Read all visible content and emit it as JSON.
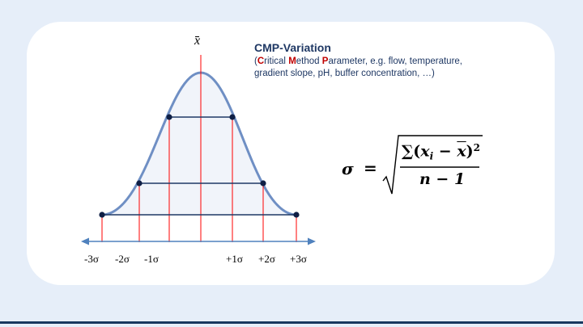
{
  "title": "CMP-Variation",
  "subtitle": {
    "open": "(",
    "c": "C",
    "ritical": "ritical ",
    "m": "M",
    "ethod": "ethod ",
    "p": "P",
    "rest": "arameter, e.g. flow, temperature, gradient slope, pH, buffer concentration, …)"
  },
  "mean_symbol": "x",
  "ticks": [
    "-3σ",
    "-2σ",
    "-1σ",
    "+1σ",
    "+2σ",
    "+3σ"
  ],
  "formula": {
    "lhs": "σ",
    "equals": "=",
    "numerator_sum": "∑(",
    "numerator_x": "x",
    "numerator_i": "i",
    "numerator_minus": " − ",
    "numerator_xbar": "x",
    "numerator_close": ")",
    "numerator_exp": "2",
    "denominator": "n − 1"
  },
  "colors": {
    "curve": "#6f8fc4",
    "fill": "#f1f4fa",
    "level_line": "#1f3864",
    "sigma_line": "#ff0000",
    "dot": "#0f1f45",
    "axis": "#4f81bd"
  }
}
